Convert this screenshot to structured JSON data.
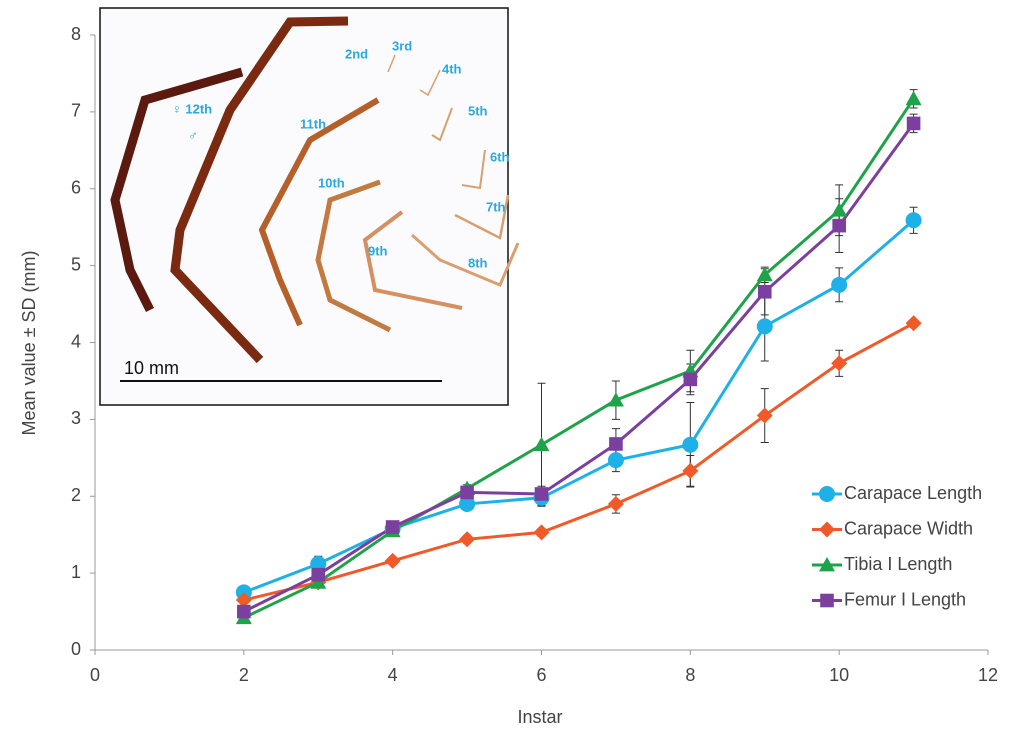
{
  "chart_data": {
    "type": "line",
    "xlabel": "Instar",
    "ylabel": "Mean value ± SD (mm)",
    "x": [
      2,
      3,
      4,
      5,
      6,
      7,
      8,
      9,
      10,
      11
    ],
    "xlim": [
      0,
      12
    ],
    "xticks": [
      0,
      2,
      4,
      6,
      8,
      10,
      12
    ],
    "ylim": [
      0,
      8
    ],
    "yticks": [
      0,
      1,
      2,
      3,
      4,
      5,
      6,
      7,
      8
    ],
    "legend": "lower right",
    "series": [
      {
        "name": "Carapace Length",
        "color": "#1eb1e8",
        "marker": "circle",
        "values": [
          0.75,
          1.12,
          1.58,
          1.9,
          1.98,
          2.47,
          2.67,
          4.21,
          4.75,
          5.59
        ],
        "errors": [
          0.05,
          0.1,
          0.05,
          0.08,
          0.1,
          0.15,
          0.55,
          0.45,
          0.22,
          0.17
        ]
      },
      {
        "name": "Carapace Width",
        "color": "#f05a28",
        "marker": "diamond",
        "values": [
          0.65,
          0.88,
          1.16,
          1.44,
          1.53,
          1.9,
          2.33,
          3.05,
          3.73,
          4.25
        ],
        "errors": [
          0.03,
          0.05,
          0.05,
          0.05,
          0.05,
          0.12,
          0.2,
          0.35,
          0.17,
          0.05
        ]
      },
      {
        "name": "Tibia I Length",
        "color": "#1fa34a",
        "marker": "triangle",
        "values": [
          0.42,
          0.88,
          1.55,
          2.1,
          2.67,
          3.25,
          3.63,
          4.88,
          5.72,
          7.17
        ],
        "errors": [
          0.03,
          0.05,
          0.05,
          0.05,
          0.8,
          0.25,
          0.27,
          0.1,
          0.33,
          0.12
        ]
      },
      {
        "name": "Femur I Length",
        "color": "#7b3fa0",
        "marker": "square",
        "values": [
          0.5,
          0.98,
          1.6,
          2.05,
          2.03,
          2.68,
          3.52,
          4.66,
          5.52,
          6.85
        ],
        "errors": [
          0.03,
          0.05,
          0.05,
          0.05,
          0.1,
          0.2,
          0.2,
          0.3,
          0.35,
          0.12
        ]
      }
    ],
    "annotations": [
      "2nd",
      "3rd",
      "4th",
      "5th",
      "6th",
      "7th",
      "8th",
      "9th",
      "10th",
      "11th",
      "♀ 12th",
      "♂",
      "10 mm"
    ]
  }
}
